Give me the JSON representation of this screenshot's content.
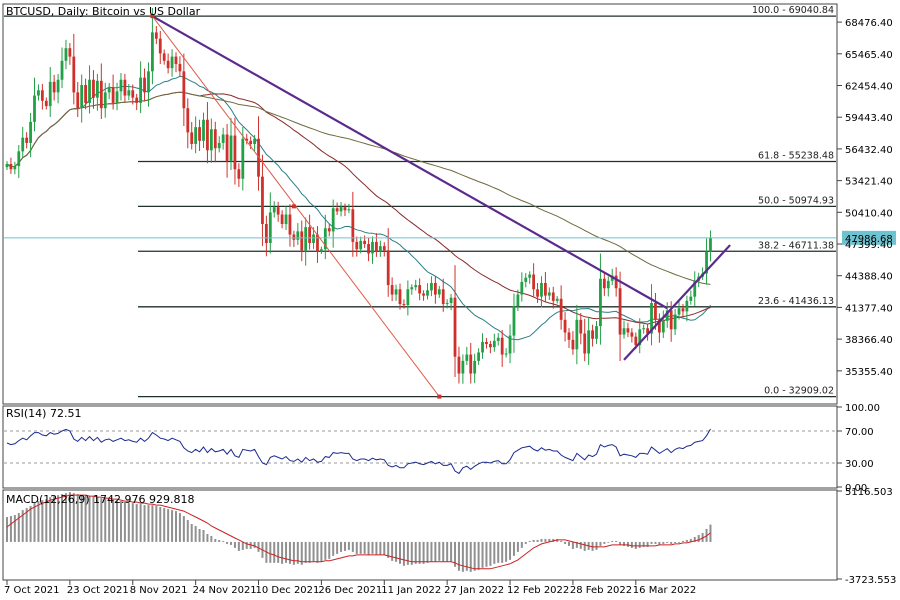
{
  "window": {
    "title": "BTCUSD, Daily:  Bitcoin vs US Dollar"
  },
  "colors": {
    "bull_candle": "#22a046",
    "bear_candle": "#d0302c",
    "ma_short": "#2a7f86",
    "ma_mid": "#8a2b2b",
    "ma_long": "#6f6a3f",
    "fib": "#20302a",
    "trendline": "#5b2a8c",
    "fan_line": "#e05a4a",
    "rsi_line": "#1b2a8f",
    "macd_hist": "#909090",
    "macd_signal": "#cc2222",
    "price_tag_bg": "#6fc2cf"
  },
  "chart_data": [
    {
      "type": "candlestick",
      "title": "BTCUSD, Daily:  Bitcoin vs US Dollar",
      "y_ticks": [
        "68476.40",
        "65465.40",
        "62454.40",
        "59443.40",
        "56432.40",
        "53421.40",
        "50410.40",
        "47399.40",
        "44388.40",
        "41377.40",
        "38366.40",
        "35355.40"
      ],
      "x_ticks": [
        "7 Oct 2021",
        "23 Oct 2021",
        "8 Nov 2021",
        "24 Nov 2021",
        "10 Dec 2021",
        "26 Dec 2021",
        "11 Jan 2022",
        "27 Jan 2022",
        "12 Feb 2022",
        "28 Feb 2022",
        "16 Mar 2022"
      ],
      "ylim": [
        32300,
        70100
      ],
      "current_price": "47986.68",
      "fib_levels": [
        {
          "label": "100.0 - 69040.84",
          "value": 69040.84
        },
        {
          "label": "61.8 - 55238.48",
          "value": 55238.48
        },
        {
          "label": "50.0 - 50974.93",
          "value": 50974.93
        },
        {
          "label": "38.2 - 46711.38",
          "value": 46711.38
        },
        {
          "label": "23.6 - 41436.13",
          "value": 41436.13
        },
        {
          "label": "0.0 - 32909.02",
          "value": 32909.02
        }
      ],
      "closes": [
        55000,
        54500,
        54800,
        56200,
        57500,
        57000,
        59000,
        61500,
        62000,
        61000,
        60500,
        62800,
        61800,
        63000,
        64800,
        66000,
        65200,
        61800,
        60300,
        62500,
        60800,
        63000,
        61300,
        62900,
        60300,
        61800,
        62300,
        60800,
        61900,
        63000,
        61500,
        62000,
        61300,
        60800,
        63200,
        61800,
        63800,
        67500,
        66900,
        65500,
        64800,
        64100,
        65200,
        64500,
        63800,
        60300,
        58000,
        56900,
        58500,
        57200,
        59200,
        56300,
        58300,
        56500,
        57000,
        57800,
        55300,
        57700,
        54500,
        53600,
        57400,
        57200,
        56900,
        57400,
        53800,
        49300,
        47500,
        50400,
        50900,
        50200,
        49300,
        50200,
        48300,
        47800,
        48600,
        46800,
        49000,
        47500,
        48300,
        46700,
        46900,
        48900,
        48600,
        50800,
        50500,
        50900,
        50600,
        50700,
        47600,
        46900,
        47700,
        47400,
        46500,
        47600,
        46700,
        47200,
        46800,
        43500,
        42600,
        43100,
        41700,
        41600,
        43100,
        43300,
        43500,
        42700,
        42500,
        43000,
        43700,
        42600,
        43100,
        41700,
        41800,
        42300,
        36700,
        35100,
        36300,
        36900,
        35100,
        36300,
        37100,
        38100,
        37900,
        37600,
        38200,
        38500,
        36900,
        37000,
        38700,
        41500,
        42600,
        43800,
        44200,
        44500,
        43100,
        42400,
        43700,
        42500,
        42800,
        42000,
        42200,
        40200,
        39000,
        38300,
        37400,
        40200,
        38900,
        37000,
        39200,
        38400,
        39600,
        44100,
        43200,
        43900,
        44400,
        43200,
        38800,
        39400,
        39000,
        38600,
        37800,
        39300,
        39400,
        38900,
        41800,
        40200,
        39000,
        40100,
        41100,
        39300,
        40700,
        41300,
        41000,
        42000,
        42400,
        43900,
        44300,
        44600,
        46700,
        47986.68
      ]
    },
    {
      "type": "line",
      "title": "RSI(14) 72.51",
      "y_ticks": [
        "100.00",
        "70.00",
        "30.00",
        "0.00"
      ],
      "ylim": [
        0,
        100
      ],
      "values": [
        55,
        53,
        54,
        58,
        61,
        59,
        64,
        68,
        68,
        65,
        64,
        68,
        66,
        67,
        70,
        72,
        70,
        60,
        57,
        62,
        58,
        63,
        58,
        62,
        56,
        59,
        60,
        57,
        59,
        61,
        58,
        59,
        57,
        56,
        61,
        57,
        61,
        68,
        65,
        61,
        60,
        58,
        61,
        59,
        57,
        49,
        45,
        43,
        47,
        44,
        50,
        43,
        48,
        44,
        45,
        47,
        41,
        47,
        39,
        37,
        47,
        46,
        45,
        47,
        38,
        30,
        28,
        37,
        39,
        37,
        35,
        38,
        33,
        32,
        35,
        31,
        37,
        33,
        35,
        31,
        32,
        38,
        37,
        43,
        42,
        43,
        42,
        42,
        35,
        33,
        35,
        35,
        33,
        36,
        34,
        35,
        34,
        27,
        25,
        27,
        24,
        24,
        29,
        30,
        31,
        29,
        28,
        30,
        32,
        29,
        31,
        27,
        27,
        29,
        20,
        17,
        24,
        26,
        22,
        26,
        29,
        31,
        31,
        30,
        32,
        33,
        29,
        29,
        34,
        43,
        46,
        49,
        50,
        51,
        47,
        45,
        49,
        46,
        47,
        45,
        45,
        40,
        37,
        35,
        33,
        42,
        38,
        34,
        40,
        38,
        41,
        53,
        50,
        52,
        53,
        50,
        39,
        41,
        40,
        39,
        37,
        42,
        42,
        41,
        50,
        46,
        42,
        45,
        48,
        43,
        47,
        49,
        48,
        51,
        52,
        56,
        57,
        58,
        64,
        72.51
      ]
    },
    {
      "type": "bar",
      "title": "MACD(12,26,9) 1742.976 929.818",
      "y_ticks": [
        "5116.503",
        "-3723.553"
      ],
      "ylim": [
        -3723.553,
        5116.503
      ],
      "histogram": [
        2500,
        2600,
        2700,
        2900,
        3200,
        3400,
        3600,
        3900,
        4100,
        4200,
        4300,
        4500,
        4600,
        4700,
        4800,
        4900,
        5000,
        4900,
        4800,
        4700,
        4700,
        4600,
        4600,
        4500,
        4400,
        4400,
        4300,
        4200,
        4100,
        4100,
        4000,
        3900,
        3900,
        3800,
        3800,
        3700,
        3700,
        3700,
        3600,
        3500,
        3400,
        3300,
        3200,
        3100,
        2900,
        2600,
        2200,
        1800,
        1600,
        1300,
        1200,
        800,
        600,
        300,
        200,
        100,
        -200,
        -300,
        -600,
        -900,
        -800,
        -700,
        -700,
        -600,
        -1000,
        -1600,
        -2100,
        -2100,
        -2100,
        -2100,
        -2200,
        -2100,
        -2200,
        -2300,
        -2200,
        -2300,
        -2100,
        -2100,
        -2000,
        -2100,
        -2000,
        -1800,
        -1700,
        -1400,
        -1200,
        -1000,
        -900,
        -800,
        -1000,
        -1200,
        -1200,
        -1200,
        -1300,
        -1200,
        -1300,
        -1300,
        -1300,
        -1600,
        -1900,
        -2000,
        -2200,
        -2400,
        -2300,
        -2300,
        -2200,
        -2200,
        -2200,
        -2100,
        -2000,
        -2000,
        -1900,
        -2000,
        -2000,
        -2000,
        -2500,
        -2900,
        -3000,
        -2900,
        -3000,
        -2900,
        -2800,
        -2600,
        -2500,
        -2400,
        -2200,
        -2100,
        -2100,
        -2000,
        -1800,
        -1400,
        -1000,
        -600,
        -200,
        100,
        200,
        200,
        300,
        300,
        300,
        300,
        300,
        100,
        -200,
        -400,
        -700,
        -600,
        -700,
        -900,
        -800,
        -900,
        -800,
        -400,
        -200,
        0,
        100,
        100,
        -300,
        -400,
        -500,
        -600,
        -700,
        -600,
        -500,
        -500,
        -200,
        -200,
        -300,
        -200,
        -100,
        -200,
        -100,
        0,
        100,
        200,
        300,
        500,
        700,
        900,
        1300,
        1742.976
      ],
      "signal": [
        1500,
        1800,
        2100,
        2400,
        2700,
        3000,
        3300,
        3500,
        3700,
        3900,
        4000,
        4200,
        4300,
        4400,
        4500,
        4600,
        4700,
        4700,
        4700,
        4700,
        4700,
        4600,
        4600,
        4500,
        4500,
        4400,
        4400,
        4300,
        4300,
        4200,
        4100,
        4100,
        4000,
        4000,
        3900,
        3900,
        3800,
        3800,
        3700,
        3700,
        3600,
        3500,
        3400,
        3300,
        3200,
        3100,
        2900,
        2700,
        2500,
        2300,
        2100,
        1900,
        1600,
        1400,
        1200,
        1000,
        800,
        600,
        400,
        200,
        0,
        -200,
        -300,
        -400,
        -600,
        -800,
        -1000,
        -1200,
        -1300,
        -1500,
        -1600,
        -1700,
        -1800,
        -1900,
        -1900,
        -2000,
        -2000,
        -2000,
        -2000,
        -2000,
        -2000,
        -1900,
        -1900,
        -1800,
        -1700,
        -1600,
        -1500,
        -1400,
        -1400,
        -1300,
        -1300,
        -1300,
        -1300,
        -1300,
        -1300,
        -1300,
        -1300,
        -1400,
        -1500,
        -1600,
        -1700,
        -1800,
        -1900,
        -2000,
        -2000,
        -2000,
        -2000,
        -2000,
        -2000,
        -2000,
        -2000,
        -2000,
        -2000,
        -2000,
        -2100,
        -2300,
        -2400,
        -2500,
        -2600,
        -2700,
        -2700,
        -2700,
        -2700,
        -2700,
        -2600,
        -2500,
        -2400,
        -2300,
        -2200,
        -2000,
        -1800,
        -1500,
        -1200,
        -900,
        -600,
        -400,
        -200,
        -100,
        0,
        100,
        200,
        200,
        200,
        100,
        0,
        -100,
        -200,
        -300,
        -400,
        -500,
        -500,
        -500,
        -500,
        -400,
        -300,
        -300,
        -300,
        -300,
        -300,
        -400,
        -400,
        -400,
        -400,
        -400,
        -400,
        -400,
        -300,
        -300,
        -300,
        -300,
        -200,
        -200,
        -100,
        -100,
        0,
        100,
        200,
        400,
        600,
        929.818
      ]
    }
  ]
}
